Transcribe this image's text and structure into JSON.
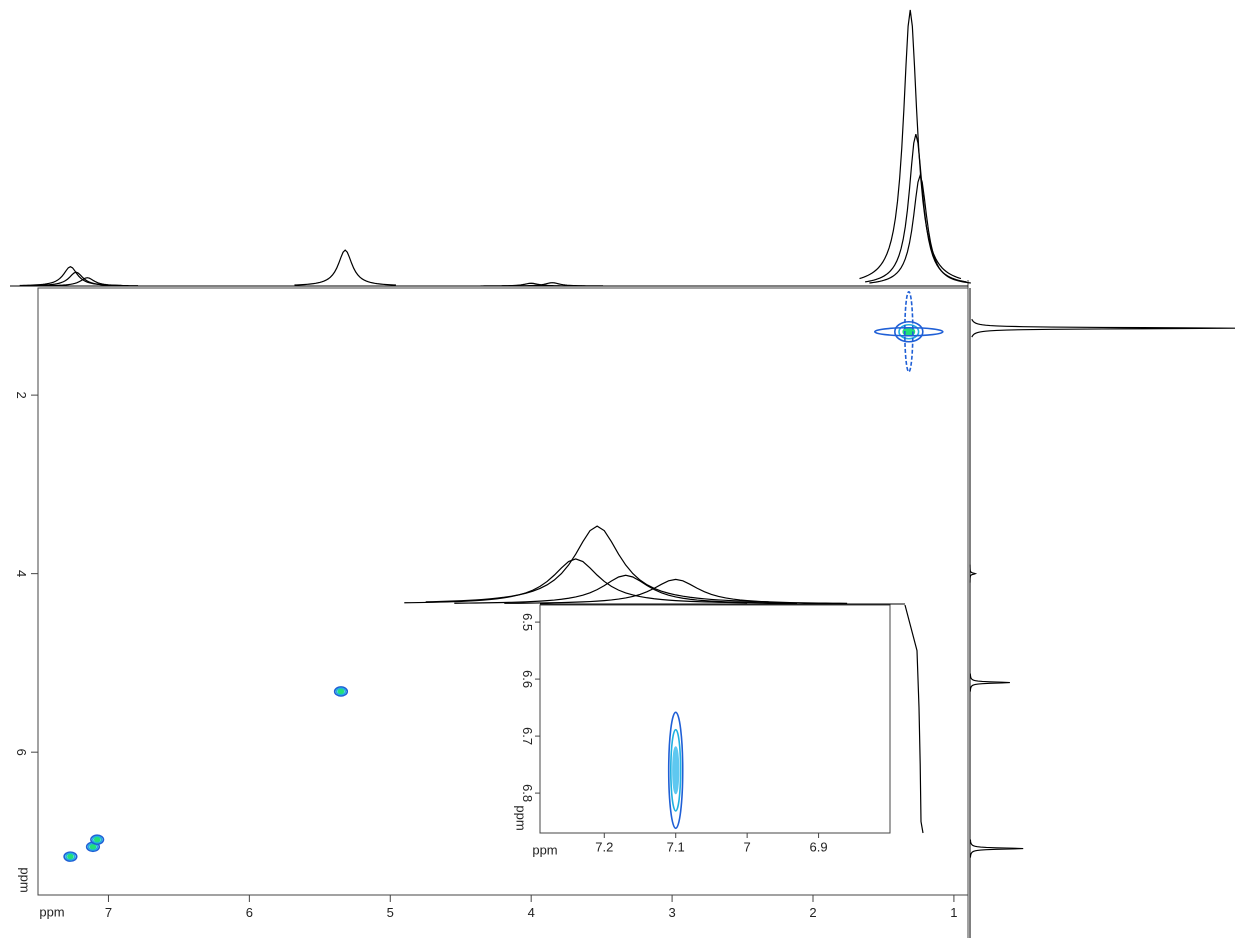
{
  "chart_data": [
    {
      "type": "contour",
      "xlabel": "ppm",
      "ylabel": "ppm",
      "xlim": [
        7.5,
        0.9
      ],
      "ylim": [
        0.8,
        7.6
      ],
      "xticks": [
        7,
        6,
        5,
        4,
        3,
        2,
        1
      ],
      "yticks": [
        2,
        4,
        6
      ],
      "colors": [
        "#1f5fd6",
        "#1fb0e0",
        "#22e07a"
      ],
      "peaks": {
        "x": [
          1.32,
          5.35,
          7.27,
          7.11,
          7.08
        ],
        "y": [
          1.29,
          5.32,
          7.17,
          7.06,
          6.98
        ]
      },
      "top_projection": {
        "x": [
          7.27,
          7.23,
          7.15,
          5.32,
          4.0,
          3.85,
          1.31,
          1.27,
          1.24
        ],
        "intensity": [
          0.07,
          0.05,
          0.03,
          0.13,
          0.01,
          0.012,
          1.0,
          0.55,
          0.4
        ]
      },
      "side_projection": {
        "y": [
          1.25,
          4.0,
          5.22,
          7.08
        ],
        "intensity": [
          1.0,
          0.02,
          0.15,
          0.2
        ]
      }
    },
    {
      "type": "contour",
      "xlabel": "ppm",
      "ylabel": "ppm",
      "xlim": [
        7.29,
        6.8
      ],
      "ylim": [
        6.47,
        6.87
      ],
      "xticks": [
        7.2,
        7.1,
        7,
        6.9
      ],
      "yticks": [
        6.5,
        6.6,
        6.7,
        6.8
      ],
      "colors": [
        "#1f5fd6",
        "#1fb0e0",
        "#5fc8f0"
      ],
      "peaks": {
        "x": [
          7.1
        ],
        "y": [
          6.76
        ]
      },
      "top_projection": {
        "x": [
          7.24,
          7.21,
          7.17,
          7.1
        ],
        "intensity": [
          0.55,
          0.95,
          0.35,
          0.3
        ]
      },
      "side_projection": {
        "y": [
          6.47,
          6.55,
          6.65,
          6.75,
          6.85,
          6.87
        ],
        "intensity": [
          0.0,
          0.3,
          0.35,
          0.38,
          0.4,
          0.45
        ]
      }
    }
  ]
}
